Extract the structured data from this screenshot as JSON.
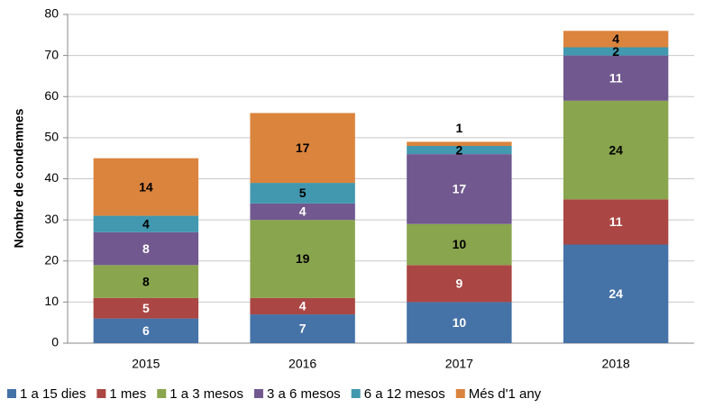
{
  "chart_data": {
    "type": "stacked_bar",
    "y_label": "Nombre de condemnes",
    "categories": [
      "2015",
      "2016",
      "2017",
      "2018"
    ],
    "series": [
      {
        "name": "1 a 15 dies",
        "color": "#4572a7",
        "values": [
          6,
          7,
          10,
          24
        ]
      },
      {
        "name": "1 mes",
        "color": "#aa4643",
        "values": [
          5,
          4,
          9,
          11
        ]
      },
      {
        "name": "1 a 3 mesos",
        "color": "#89a54e",
        "values": [
          8,
          19,
          10,
          24
        ]
      },
      {
        "name": "3 a 6 mesos",
        "color": "#71588f",
        "values": [
          8,
          4,
          17,
          11
        ]
      },
      {
        "name": "6 a 12 mesos",
        "color": "#4198af",
        "values": [
          4,
          5,
          2,
          2
        ]
      },
      {
        "name": "Més d'1 any",
        "color": "#db843d",
        "values": [
          14,
          17,
          1,
          4
        ]
      }
    ],
    "ylim": [
      0,
      80
    ],
    "yticks": [
      0,
      10,
      20,
      30,
      40,
      50,
      60,
      70,
      80
    ],
    "grid": true,
    "legend": "bottom"
  }
}
